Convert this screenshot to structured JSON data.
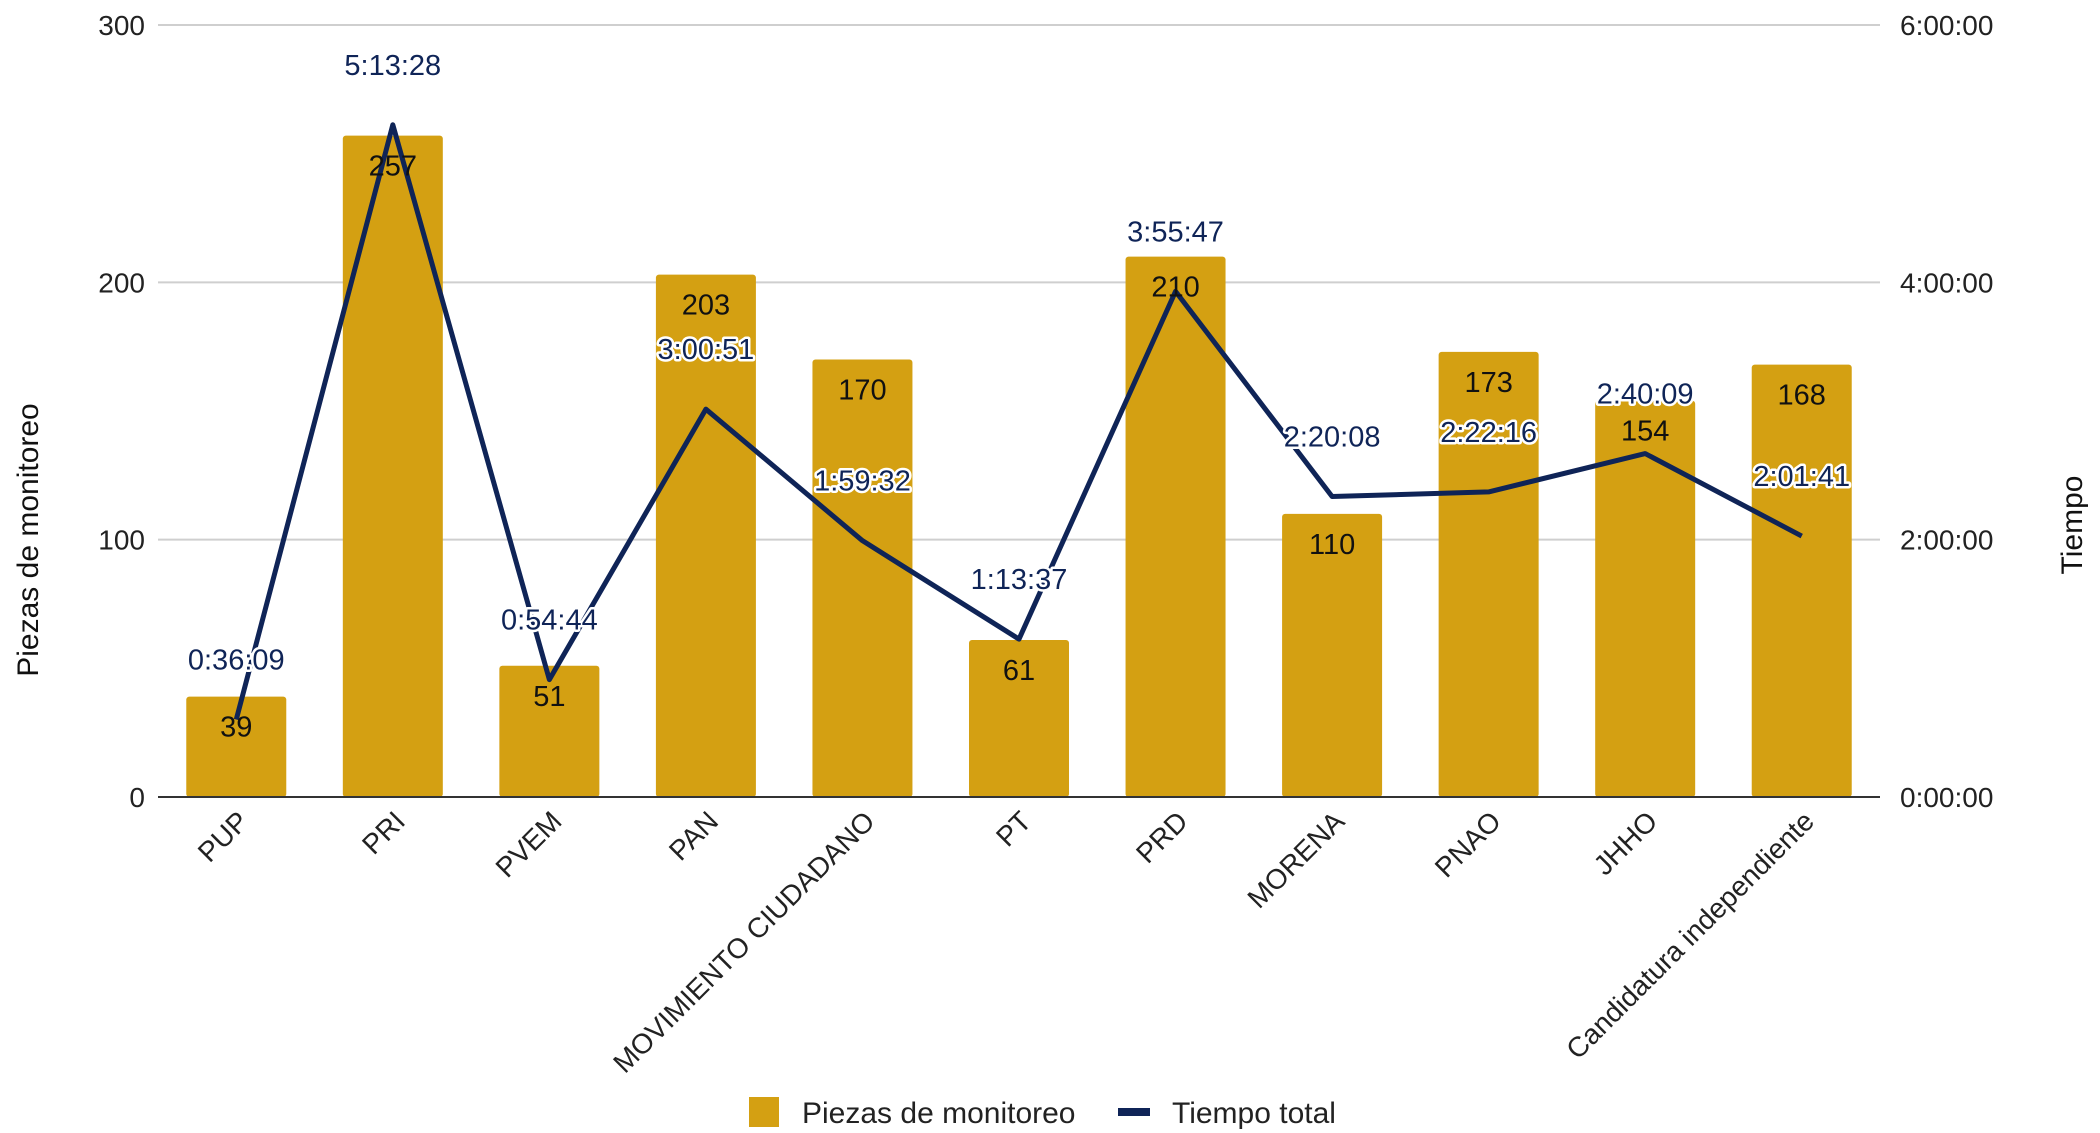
{
  "chart_data": {
    "type": "bar",
    "title": "",
    "categories": [
      "PUP",
      "PRI",
      "PVEM",
      "PAN",
      "MOVIMIENTO CIUDADANO",
      "PT",
      "PRD",
      "MORENA",
      "PNAO",
      "JHHO",
      "Candidatura independiente"
    ],
    "series": [
      {
        "name": "Piezas de monitoreo",
        "type": "bar",
        "axis": "left",
        "color": "#d4a012",
        "values": [
          39,
          257,
          51,
          203,
          170,
          61,
          210,
          110,
          173,
          154,
          168
        ]
      },
      {
        "name": "Tiempo total",
        "type": "line",
        "axis": "right",
        "color": "#0f2457",
        "values": [
          "0:36:09",
          "5:13:28",
          "0:54:44",
          "3:00:51",
          "1:59:32",
          "1:13:37",
          "3:55:47",
          "2:20:08",
          "2:22:16",
          "2:40:09",
          "2:01:41"
        ]
      }
    ],
    "ylabel": "Piezas de monitoreo",
    "ylim": [
      0,
      300
    ],
    "yticks": [
      "0",
      "100",
      "200",
      "300"
    ],
    "y2label": "Tiempo",
    "y2lim": [
      "0:00:00",
      "6:00:00"
    ],
    "y2ticks": [
      "0:00:00",
      "2:00:00",
      "4:00:00",
      "6:00:00"
    ],
    "grid": true,
    "legend": "bottom"
  }
}
